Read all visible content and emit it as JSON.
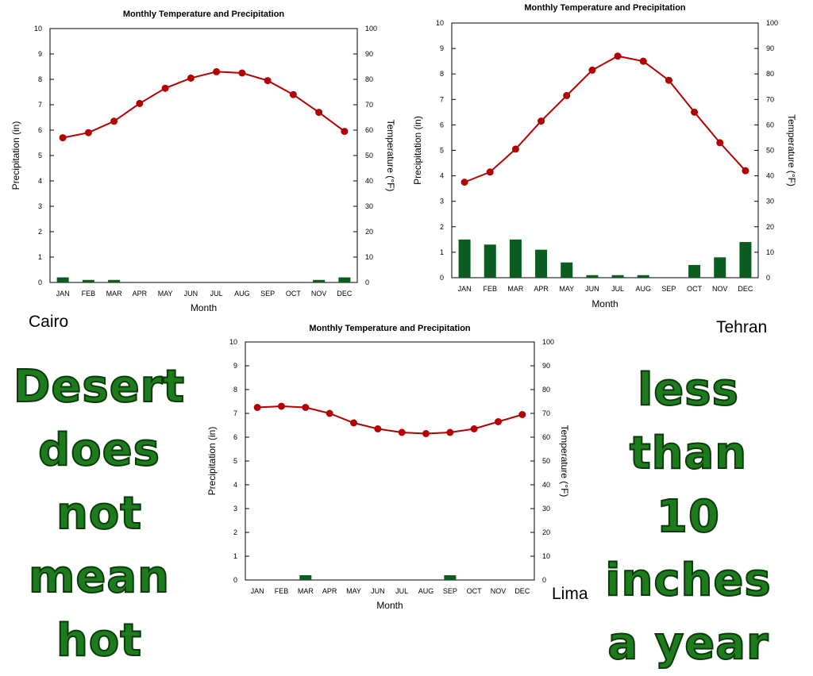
{
  "colors": {
    "temperature_line": "#b30000",
    "precip_bar": "#0a5c1f",
    "slogan": "#1d7a1d"
  },
  "cities": {
    "cairo": "Cairo",
    "tehran": "Tehran",
    "lima": "Lima"
  },
  "slogan_left": [
    "Desert",
    "does not",
    "mean",
    "hot"
  ],
  "slogan_right": [
    "less",
    "than",
    "10 inches",
    "a year"
  ],
  "chart_data": [
    {
      "type": "bar+line",
      "city": "Cairo",
      "title": "Monthly Temperature and Precipitation",
      "xlabel": "Month",
      "ylabel_left": "Precipitation (in)",
      "ylabel_right": "Temperature (°F)",
      "categories": [
        "JAN",
        "FEB",
        "MAR",
        "APR",
        "MAY",
        "JUN",
        "JUL",
        "AUG",
        "SEP",
        "OCT",
        "NOV",
        "DEC"
      ],
      "ylim_left": [
        0,
        10
      ],
      "ylim_right": [
        0,
        100
      ],
      "left_ticks": [
        "0",
        "1",
        "2",
        "3",
        "4",
        "5",
        "6",
        "7",
        "8",
        "9",
        "10"
      ],
      "right_ticks": [
        "0",
        "10",
        "20",
        "30",
        "40",
        "50",
        "60",
        "70",
        "80",
        "90",
        "100"
      ],
      "precipitation": [
        0.2,
        0.1,
        0.1,
        0,
        0,
        0,
        0,
        0,
        0,
        0,
        0.1,
        0.2
      ],
      "temperature": [
        57,
        59,
        63.5,
        70.5,
        76.5,
        80.5,
        83,
        82.5,
        79.5,
        74,
        67,
        59.5
      ]
    },
    {
      "type": "bar+line",
      "city": "Tehran",
      "title": "Monthly Temperature and Precipitation",
      "xlabel": "Month",
      "ylabel_left": "Precipitation (in)",
      "ylabel_right": "Temperature (°F)",
      "categories": [
        "JAN",
        "FEB",
        "MAR",
        "APR",
        "MAY",
        "JUN",
        "JUL",
        "AUG",
        "SEP",
        "OCT",
        "NOV",
        "DEC"
      ],
      "ylim_left": [
        0,
        10
      ],
      "ylim_right": [
        0,
        100
      ],
      "left_ticks": [
        "0",
        "1",
        "2",
        "3",
        "4",
        "5",
        "6",
        "7",
        "8",
        "9",
        "10"
      ],
      "right_ticks": [
        "0",
        "10",
        "20",
        "30",
        "40",
        "50",
        "60",
        "70",
        "80",
        "90",
        "100"
      ],
      "precipitation": [
        1.5,
        1.3,
        1.5,
        1.1,
        0.6,
        0.1,
        0.1,
        0.1,
        0,
        0.5,
        0.8,
        1.4
      ],
      "temperature": [
        37.5,
        41.5,
        50.5,
        61.5,
        71.5,
        81.5,
        87,
        85,
        77.5,
        65,
        53,
        42
      ]
    },
    {
      "type": "bar+line",
      "city": "Lima",
      "title": "Monthly Temperature and Precipitation",
      "xlabel": "Month",
      "ylabel_left": "Precipitation (in)",
      "ylabel_right": "Temperature (°F)",
      "categories": [
        "JAN",
        "FEB",
        "MAR",
        "APR",
        "MAY",
        "JUN",
        "JUL",
        "AUG",
        "SEP",
        "OCT",
        "NOV",
        "DEC"
      ],
      "ylim_left": [
        0,
        10
      ],
      "ylim_right": [
        0,
        100
      ],
      "left_ticks": [
        "0",
        "1",
        "2",
        "3",
        "4",
        "5",
        "6",
        "7",
        "8",
        "9",
        "10"
      ],
      "right_ticks": [
        "0",
        "10",
        "20",
        "30",
        "40",
        "50",
        "60",
        "70",
        "80",
        "90",
        "100"
      ],
      "precipitation": [
        0,
        0,
        0.2,
        0,
        0,
        0,
        0,
        0,
        0.2,
        0,
        0,
        0
      ],
      "temperature": [
        72.5,
        73,
        72.5,
        70,
        66,
        63.5,
        62,
        61.5,
        62,
        63.5,
        66.5,
        69.5
      ]
    }
  ]
}
